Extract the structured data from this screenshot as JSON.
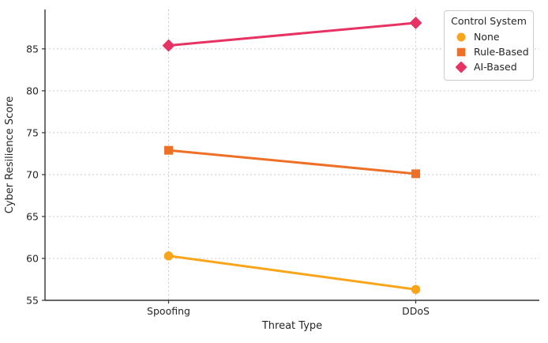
{
  "chart_data": {
    "type": "line",
    "title": "",
    "xlabel": "Threat Type",
    "ylabel": "Cyber Resilience Score",
    "categories": [
      "Spoofing",
      "DDoS"
    ],
    "series": [
      {
        "name": "None",
        "marker": "circle",
        "color": "#F9A51B",
        "values": [
          60.3,
          56.3
        ]
      },
      {
        "name": "Rule-Based",
        "marker": "square",
        "color": "#EE6F26",
        "values": [
          72.9,
          70.1
        ]
      },
      {
        "name": "AI-Based",
        "marker": "diamond",
        "color": "#E73363",
        "values": [
          85.4,
          88.1
        ]
      }
    ],
    "ylim": [
      55,
      89.7
    ],
    "yticks": [
      55,
      60,
      65,
      70,
      75,
      80,
      85
    ],
    "grid": true,
    "legend": {
      "title": "Control System",
      "position": "top-right"
    },
    "colors": {
      "axis": "#333333",
      "text": "#262626",
      "grid": "#cccccc",
      "background": "#ffffff"
    }
  }
}
